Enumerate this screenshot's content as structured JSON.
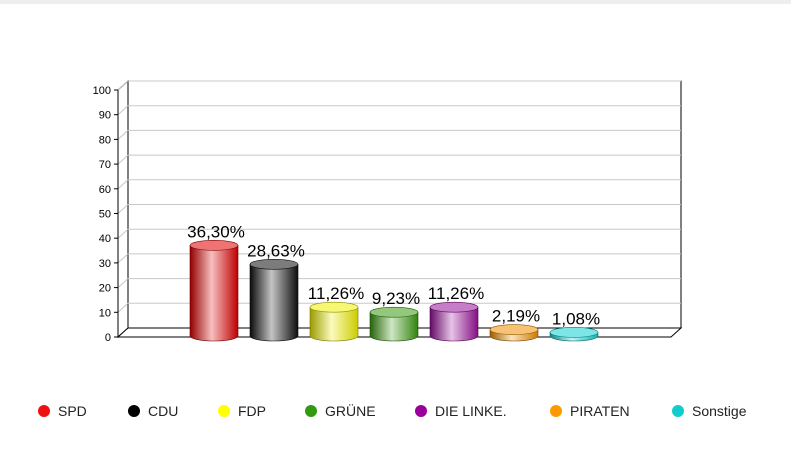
{
  "chart_data": {
    "type": "bar",
    "categories": [
      "SPD",
      "CDU",
      "FDP",
      "GRÜNE",
      "DIE LINKE.",
      "PIRATEN",
      "Sonstige"
    ],
    "values": [
      36.3,
      28.63,
      11.26,
      9.23,
      11.26,
      2.19,
      1.08
    ],
    "data_labels": [
      "36,30%",
      "28,63%",
      "11,26%",
      "9,23%",
      "11,26%",
      "2,19%",
      "1,08%"
    ],
    "colors": [
      "#e00000",
      "#111111",
      "#f0f000",
      "#3a9a10",
      "#9a109a",
      "#f09000",
      "#10d0d0"
    ],
    "ylim": [
      0,
      100
    ],
    "yticks": [
      "0",
      "10",
      "20",
      "30",
      "40",
      "50",
      "60",
      "70",
      "80",
      "90",
      "100"
    ],
    "grid": true,
    "legend_placement": "bottom",
    "style": "3d-cylinder"
  },
  "legend": [
    {
      "label": "SPD",
      "color": "#ee1111"
    },
    {
      "label": "CDU",
      "color": "#000000"
    },
    {
      "label": "FDP",
      "color": "#ffff00"
    },
    {
      "label": "GRÜNE",
      "color": "#339911"
    },
    {
      "label": "DIE LINKE.",
      "color": "#990099"
    },
    {
      "label": "PIRATEN",
      "color": "#ff9900"
    },
    {
      "label": "Sonstige",
      "color": "#11cccc"
    }
  ]
}
